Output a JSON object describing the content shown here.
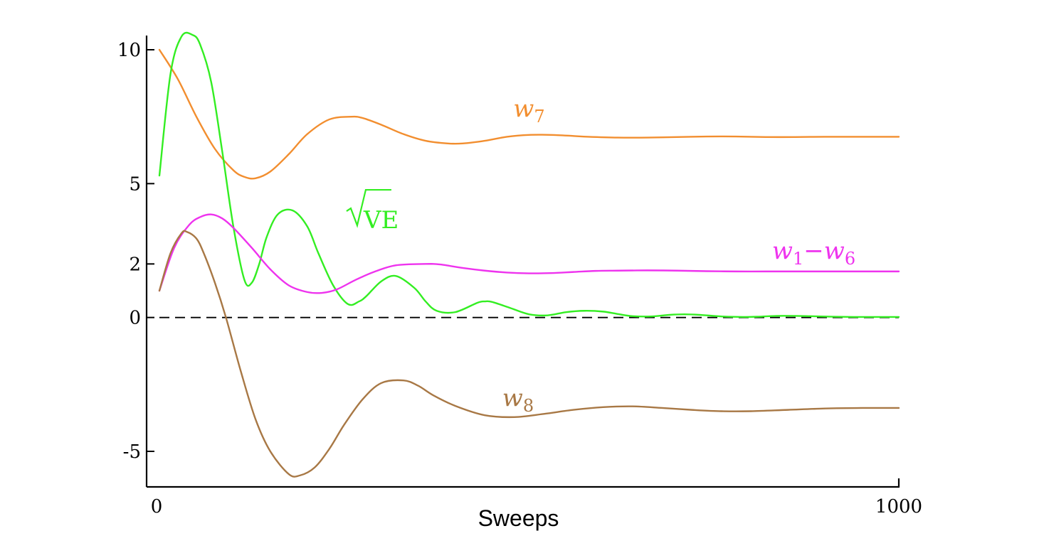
{
  "chart_data": {
    "type": "line",
    "title": "",
    "xlabel": "Sweeps",
    "ylabel": "",
    "xlim": [
      0,
      1000
    ],
    "ylim": [
      -6.3,
      10.6
    ],
    "xticks": [
      {
        "value": 0,
        "label": "0"
      },
      {
        "value": 1000,
        "label": "1000"
      }
    ],
    "yticks": [
      {
        "value": 10,
        "label": "10"
      },
      {
        "value": 5,
        "label": "5"
      },
      {
        "value": 2,
        "label": "2"
      },
      {
        "value": 0,
        "label": "0"
      },
      {
        "value": -5,
        "label": "-5"
      }
    ],
    "reference_line": {
      "y": 0,
      "style": "dashed"
    },
    "grid": false,
    "legend": "none",
    "series": [
      {
        "id": "w7",
        "name": "w7",
        "label_text": "w",
        "label_sub": "7",
        "color": "#f28e2f",
        "x": [
          0,
          25,
          50,
          75,
          100,
          115,
          130,
          150,
          175,
          200,
          230,
          260,
          275,
          300,
          330,
          360,
          390,
          410,
          440,
          470,
          500,
          530,
          560,
          580,
          620,
          660,
          700,
          740,
          780,
          820,
          860,
          900,
          940,
          980,
          1000
        ],
        "y": [
          10.0,
          8.9,
          7.5,
          6.3,
          5.5,
          5.25,
          5.2,
          5.45,
          6.1,
          6.85,
          7.4,
          7.5,
          7.45,
          7.2,
          6.85,
          6.6,
          6.5,
          6.5,
          6.6,
          6.75,
          6.82,
          6.82,
          6.78,
          6.75,
          6.72,
          6.72,
          6.74,
          6.76,
          6.76,
          6.74,
          6.74,
          6.75,
          6.75,
          6.75,
          6.75
        ]
      },
      {
        "id": "ve",
        "name": "√VE",
        "label_text": "VE",
        "color": "#33ee22",
        "x": [
          0,
          15,
          30,
          45,
          55,
          70,
          85,
          100,
          115,
          125,
          135,
          145,
          160,
          180,
          200,
          215,
          235,
          255,
          270,
          280,
          300,
          320,
          345,
          360,
          375,
          400,
          430,
          440,
          450,
          475,
          500,
          525,
          550,
          575,
          600,
          620,
          640,
          665,
          690,
          710,
          730,
          760,
          790,
          810,
          835,
          860,
          880,
          910,
          940,
          960,
          990,
          1000
        ],
        "y": [
          5.3,
          9.1,
          10.5,
          10.55,
          10.2,
          8.8,
          6.2,
          3.4,
          1.4,
          1.3,
          2.0,
          3.0,
          3.85,
          4.0,
          3.4,
          2.4,
          1.2,
          0.5,
          0.6,
          0.8,
          1.35,
          1.55,
          1.1,
          0.6,
          0.25,
          0.2,
          0.55,
          0.6,
          0.58,
          0.35,
          0.12,
          0.08,
          0.2,
          0.25,
          0.22,
          0.13,
          0.05,
          0.04,
          0.1,
          0.12,
          0.1,
          0.04,
          0.02,
          0.03,
          0.06,
          0.06,
          0.05,
          0.03,
          0.02,
          0.02,
          0.02,
          0.02
        ]
      },
      {
        "id": "w1w6",
        "name": "w1−w6",
        "label_text": "w",
        "label_sub": "1",
        "label_text2": "−w",
        "label_sub2": "6",
        "color": "#ee33ee",
        "x": [
          0,
          20,
          40,
          55,
          70,
          85,
          100,
          125,
          150,
          175,
          200,
          220,
          240,
          265,
          290,
          320,
          360,
          380,
          410,
          440,
          470,
          500,
          530,
          560,
          590,
          620,
          660,
          700,
          740,
          780,
          820,
          860,
          900,
          940,
          1000
        ],
        "y": [
          1.0,
          2.6,
          3.45,
          3.75,
          3.85,
          3.7,
          3.35,
          2.6,
          1.8,
          1.2,
          0.95,
          0.92,
          1.05,
          1.4,
          1.7,
          1.95,
          2.0,
          1.98,
          1.85,
          1.75,
          1.68,
          1.65,
          1.66,
          1.7,
          1.74,
          1.75,
          1.76,
          1.75,
          1.73,
          1.72,
          1.72,
          1.72,
          1.72,
          1.72,
          1.72
        ]
      },
      {
        "id": "w8",
        "name": "w8",
        "label_text": "w",
        "label_sub": "8",
        "color": "#a87845",
        "x": [
          0,
          15,
          30,
          37,
          50,
          60,
          75,
          90,
          110,
          130,
          150,
          175,
          190,
          210,
          230,
          250,
          275,
          300,
          330,
          350,
          370,
          400,
          440,
          480,
          520,
          560,
          600,
          640,
          680,
          720,
          760,
          800,
          850,
          900,
          950,
          1000
        ],
        "y": [
          1.0,
          2.4,
          3.15,
          3.2,
          2.95,
          2.4,
          1.3,
          0.0,
          -2.0,
          -3.8,
          -5.0,
          -5.85,
          -5.9,
          -5.6,
          -4.9,
          -4.0,
          -3.05,
          -2.45,
          -2.35,
          -2.55,
          -2.9,
          -3.3,
          -3.65,
          -3.72,
          -3.6,
          -3.45,
          -3.35,
          -3.32,
          -3.38,
          -3.45,
          -3.5,
          -3.5,
          -3.45,
          -3.4,
          -3.38,
          -3.38
        ]
      }
    ],
    "annotations": [
      {
        "series": "w7",
        "text": "w7",
        "x": 500,
        "y": 7.5
      },
      {
        "series": "ve",
        "text": "√VE",
        "x": 255,
        "y": 3.6
      },
      {
        "series": "w1w6",
        "text": "w1−w6",
        "x": 885,
        "y": 2.2
      },
      {
        "series": "w8",
        "text": "w8",
        "x": 485,
        "y": -3.3
      }
    ]
  }
}
